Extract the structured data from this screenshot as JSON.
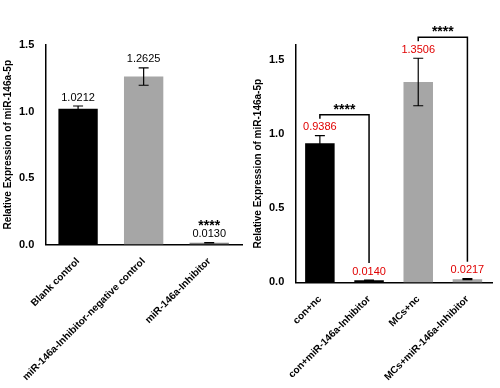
{
  "chart_data": [
    {
      "type": "bar",
      "categories": [
        "Blank control",
        "miR-146a-Inhibitor-negative control",
        "miR-146a-Inhibitor"
      ],
      "values": [
        1.0212,
        1.2625,
        0.013
      ],
      "value_labels": [
        "1.0212",
        "1.2625",
        "0.0130"
      ],
      "errors": [
        0.02,
        0.065,
        0.002
      ],
      "colors": [
        "#000000",
        "#a6a6a6",
        "#808080"
      ],
      "y_label": "Relative Expression of miR-146a-5p",
      "ylim": [
        0,
        1.5
      ],
      "yticks": [
        {
          "value": 0,
          "label": "0.0"
        },
        0.5,
        {
          "value": 1,
          "label": "1.0"
        },
        1.5
      ],
      "grid": false,
      "data_labels": true,
      "annotations": [
        {
          "text": "****",
          "category": "miR-146a-Inhibitor"
        }
      ]
    },
    {
      "type": "bar",
      "categories": [
        "con+nc",
        "con+miR-146a-Inhibitor",
        "MCs+nc",
        "MCs+miR-146a-Inhibitor"
      ],
      "values": [
        0.9386,
        0.014,
        1.3506,
        0.0217
      ],
      "value_labels": [
        "0.9386",
        "0.0140",
        "1.3506",
        "0.0217"
      ],
      "errors": [
        0.05,
        0.002,
        0.16,
        0.003
      ],
      "colors": [
        "#000000",
        "#000000",
        "#a6a6a6",
        "#a6a6a6"
      ],
      "y_label": "Relative Expression of miR-146a-5p",
      "ylim": [
        0,
        1.6
      ],
      "yticks": [
        {
          "value": 0,
          "label": "0.0"
        },
        0.5,
        {
          "value": 1,
          "label": "1.0"
        },
        1.5
      ],
      "grid": false,
      "data_labels": true,
      "annotations": [
        {
          "text": "****",
          "from": "con+nc",
          "to": "con+miR-146a-Inhibitor"
        },
        {
          "text": "****",
          "from": "MCs+nc",
          "to": "MCs+miR-146a-Inhibitor"
        }
      ]
    }
  ]
}
